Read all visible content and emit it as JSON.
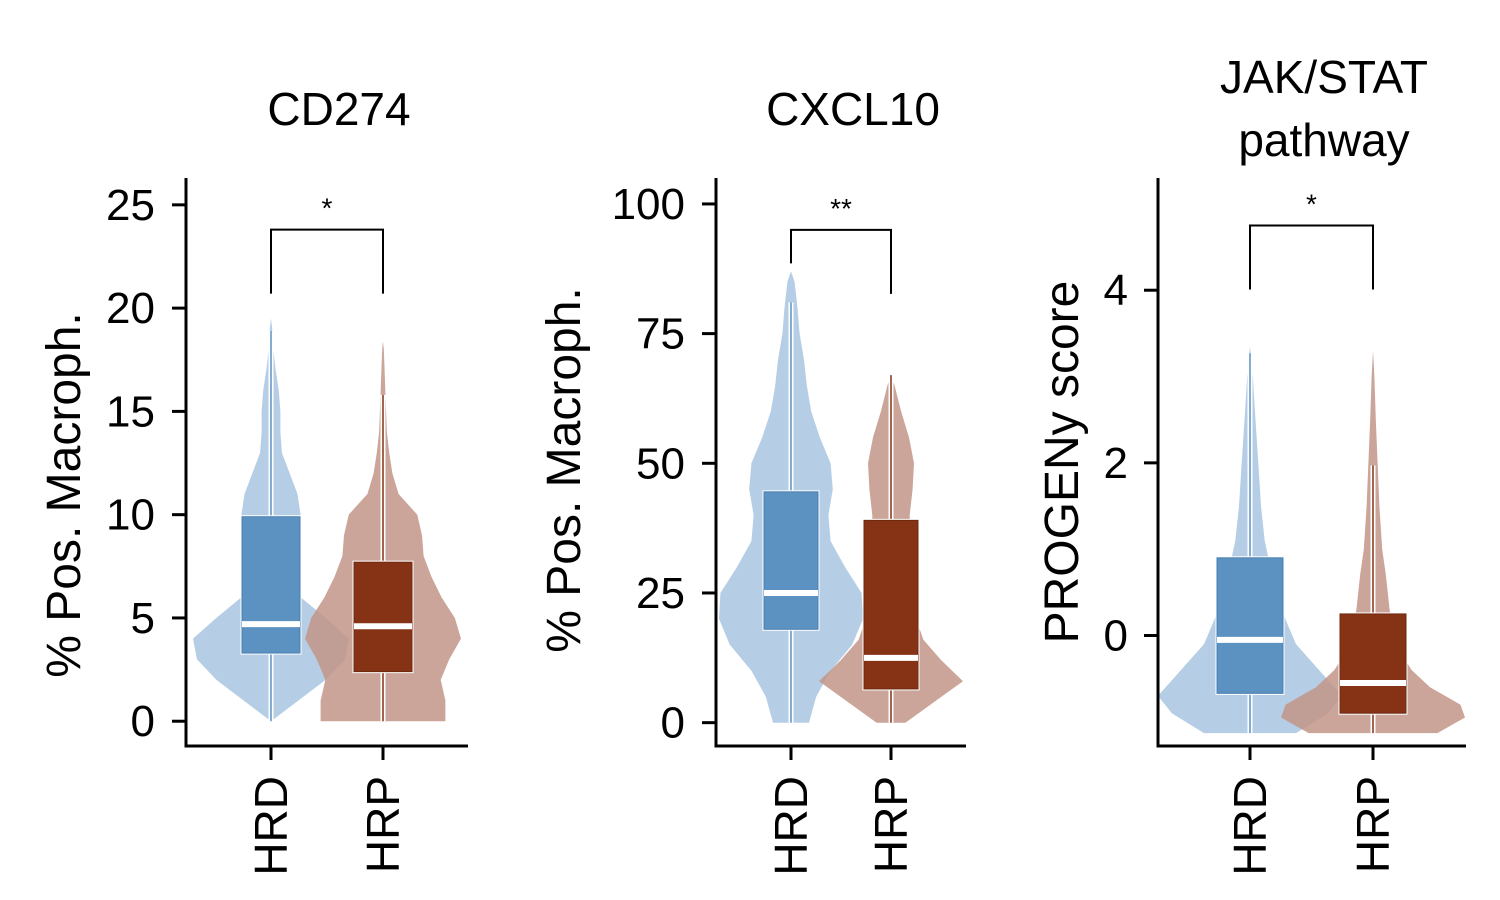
{
  "colors": {
    "HRD_violin": "#a9c6e1",
    "HRD_box": "#5b92c2",
    "HRP_violin": "#c29587",
    "HRP_box": "#863214",
    "axis": "#000000"
  },
  "chart_data": [
    {
      "type": "violin",
      "title": "CD274",
      "ylabel": "% Pos. Macroph.",
      "categories": [
        "HRD",
        "HRP"
      ],
      "ylim": [
        -1.2,
        26.3
      ],
      "yticks": [
        0,
        5,
        10,
        15,
        20,
        25
      ],
      "yticklabels": [
        "0",
        "5",
        "10",
        "15",
        "20",
        "25"
      ],
      "grid": false,
      "groups": [
        {
          "name": "HRD",
          "min": 0,
          "q1": 3.3,
          "median": 4.7,
          "q3": 9.9,
          "whisker_high": 18.9,
          "max": 19.5,
          "density": [
            [
              0,
              0.0
            ],
            [
              1,
              0.35
            ],
            [
              2,
              0.7
            ],
            [
              3,
              0.95
            ],
            [
              4,
              1.0
            ],
            [
              5,
              0.7
            ],
            [
              6,
              0.38
            ],
            [
              7,
              0.32
            ],
            [
              8,
              0.34
            ],
            [
              9,
              0.36
            ],
            [
              10,
              0.38
            ],
            [
              11,
              0.34
            ],
            [
              12,
              0.24
            ],
            [
              13,
              0.14
            ],
            [
              14,
              0.12
            ],
            [
              15,
              0.12
            ],
            [
              16,
              0.1
            ],
            [
              17,
              0.06
            ],
            [
              18,
              0.03
            ],
            [
              19,
              0.015
            ],
            [
              19.5,
              0.0
            ]
          ]
        },
        {
          "name": "HRP",
          "min": 0,
          "q1": 2.4,
          "median": 4.6,
          "q3": 7.7,
          "whisker_high": 15.8,
          "max": 18.4,
          "density": [
            [
              0,
              0.8
            ],
            [
              1,
              0.8
            ],
            [
              2,
              0.74
            ],
            [
              3,
              0.85
            ],
            [
              4,
              1.0
            ],
            [
              5,
              0.92
            ],
            [
              6,
              0.75
            ],
            [
              7,
              0.62
            ],
            [
              8,
              0.52
            ],
            [
              9,
              0.5
            ],
            [
              10,
              0.44
            ],
            [
              11,
              0.2
            ],
            [
              12,
              0.12
            ],
            [
              13,
              0.08
            ],
            [
              14,
              0.05
            ],
            [
              15,
              0.04
            ],
            [
              16,
              0.03
            ],
            [
              17,
              0.02
            ],
            [
              18,
              0.01
            ],
            [
              18.4,
              0.0
            ]
          ]
        }
      ],
      "significance": {
        "label": "*",
        "y": 23.8
      }
    },
    {
      "type": "violin",
      "title": "CXCL10",
      "ylabel": "% Pos. Macroph.",
      "categories": [
        "HRD",
        "HRP"
      ],
      "ylim": [
        -4.5,
        105
      ],
      "yticks": [
        0,
        25,
        50,
        75,
        100
      ],
      "yticklabels": [
        "0",
        "25",
        "50",
        "75",
        "100"
      ],
      "grid": false,
      "groups": [
        {
          "name": "HRD",
          "min": 0,
          "q1": 18,
          "median": 25,
          "q3": 44.5,
          "whisker_high": 81,
          "max": 87,
          "density": [
            [
              0,
              0.25
            ],
            [
              5,
              0.35
            ],
            [
              10,
              0.55
            ],
            [
              15,
              0.85
            ],
            [
              20,
              1.0
            ],
            [
              25,
              0.98
            ],
            [
              30,
              0.75
            ],
            [
              35,
              0.55
            ],
            [
              40,
              0.52
            ],
            [
              45,
              0.58
            ],
            [
              50,
              0.55
            ],
            [
              55,
              0.4
            ],
            [
              60,
              0.28
            ],
            [
              65,
              0.22
            ],
            [
              70,
              0.18
            ],
            [
              75,
              0.12
            ],
            [
              80,
              0.09
            ],
            [
              85,
              0.05
            ],
            [
              87,
              0.0
            ]
          ]
        },
        {
          "name": "HRP",
          "min": 0,
          "q1": 6.5,
          "median": 12.5,
          "q3": 39,
          "whisker_high": 67,
          "max": 67,
          "density": [
            [
              0,
              0.2
            ],
            [
              5,
              0.7
            ],
            [
              8,
              1.0
            ],
            [
              12,
              0.7
            ],
            [
              16,
              0.45
            ],
            [
              20,
              0.35
            ],
            [
              25,
              0.32
            ],
            [
              30,
              0.28
            ],
            [
              35,
              0.26
            ],
            [
              40,
              0.26
            ],
            [
              45,
              0.3
            ],
            [
              50,
              0.32
            ],
            [
              55,
              0.25
            ],
            [
              60,
              0.14
            ],
            [
              65,
              0.05
            ],
            [
              67,
              0.0
            ]
          ]
        }
      ],
      "significance": {
        "label": "**",
        "y": 95
      }
    },
    {
      "type": "violin",
      "title": "JAK/STAT pathway",
      "title_lines": [
        "JAK/STAT",
        "pathway"
      ],
      "ylabel": "PROGENy score",
      "categories": [
        "HRD",
        "HRP"
      ],
      "ylim": [
        -1.28,
        5.3
      ],
      "yticks": [
        0,
        2,
        4
      ],
      "yticklabels": [
        "0",
        "2",
        "4"
      ],
      "grid": false,
      "groups": [
        {
          "name": "HRD",
          "min": -1.13,
          "q1": -0.67,
          "median": -0.05,
          "q3": 0.9,
          "whisker_high": 3.27,
          "max": 3.35,
          "density": [
            [
              -1.13,
              0.5
            ],
            [
              -0.9,
              0.85
            ],
            [
              -0.7,
              1.0
            ],
            [
              -0.4,
              0.75
            ],
            [
              -0.1,
              0.5
            ],
            [
              0.2,
              0.38
            ],
            [
              0.5,
              0.3
            ],
            [
              0.8,
              0.22
            ],
            [
              1.1,
              0.16
            ],
            [
              1.5,
              0.12
            ],
            [
              2.0,
              0.09
            ],
            [
              2.5,
              0.06
            ],
            [
              3.0,
              0.03
            ],
            [
              3.35,
              0.0
            ]
          ]
        },
        {
          "name": "HRP",
          "min": -1.13,
          "q1": -0.9,
          "median": -0.55,
          "q3": 0.25,
          "whisker_high": 1.97,
          "max": 3.3,
          "density": [
            [
              -1.13,
              0.7
            ],
            [
              -0.95,
              1.0
            ],
            [
              -0.8,
              0.95
            ],
            [
              -0.6,
              0.62
            ],
            [
              -0.4,
              0.42
            ],
            [
              -0.2,
              0.3
            ],
            [
              0.0,
              0.24
            ],
            [
              0.3,
              0.18
            ],
            [
              0.7,
              0.14
            ],
            [
              1.0,
              0.1
            ],
            [
              1.5,
              0.07
            ],
            [
              2.0,
              0.05
            ],
            [
              2.5,
              0.03
            ],
            [
              3.0,
              0.015
            ],
            [
              3.3,
              0.0
            ]
          ]
        }
      ],
      "significance": {
        "label": "*",
        "y": 4.75
      }
    }
  ]
}
